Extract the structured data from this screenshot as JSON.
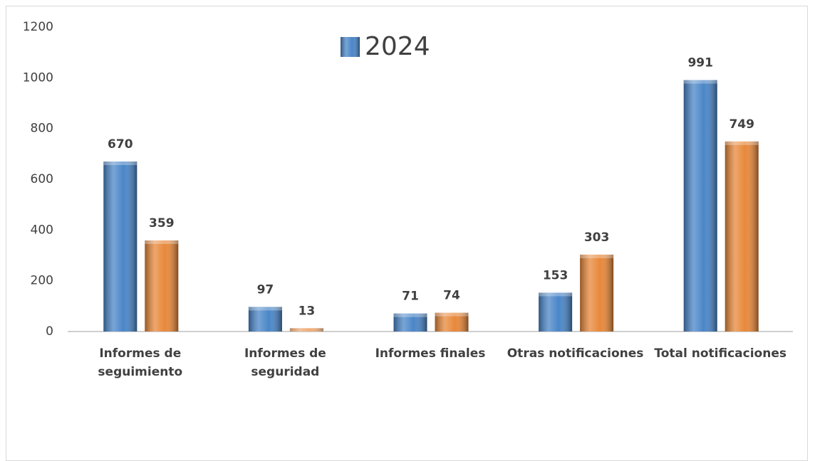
{
  "chart_data": {
    "type": "bar",
    "categories": [
      "Informes de seguimiento",
      "Informes de seguridad",
      "Informes finales",
      "Otras notificaciones",
      "Total notificaciones"
    ],
    "series": [
      {
        "name": "2024",
        "color": "#4a86c8",
        "values": [
          670,
          97,
          71,
          153,
          991
        ]
      },
      {
        "color": "#e8883a",
        "values": [
          359,
          13,
          74,
          303,
          749
        ]
      }
    ],
    "ylim": [
      0,
      1200
    ],
    "yticks": [
      0,
      200,
      400,
      600,
      800,
      1000,
      1200
    ],
    "grid": false,
    "legend": "top"
  }
}
